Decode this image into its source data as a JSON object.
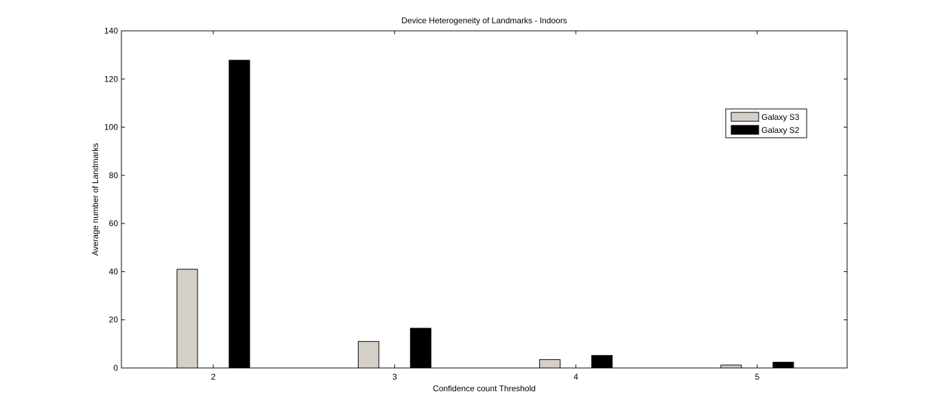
{
  "chart_data": {
    "type": "bar",
    "title": "Device Heterogeneity of Landmarks - Indoors",
    "xlabel": "Confidence count Threshold",
    "ylabel": "Average number of Landmarks",
    "categories": [
      "2",
      "3",
      "4",
      "5"
    ],
    "ylim": [
      0,
      140
    ],
    "yticks": [
      0,
      20,
      40,
      60,
      80,
      100,
      120,
      140
    ],
    "grid": false,
    "legend_position": "top-right",
    "series": [
      {
        "name": "Galaxy S3",
        "color": "#d4d0c8",
        "values": [
          41,
          11,
          3.5,
          1.2
        ]
      },
      {
        "name": "Galaxy S2",
        "color": "#000000",
        "values": [
          127.8,
          16.5,
          5.2,
          2.4
        ]
      }
    ]
  }
}
